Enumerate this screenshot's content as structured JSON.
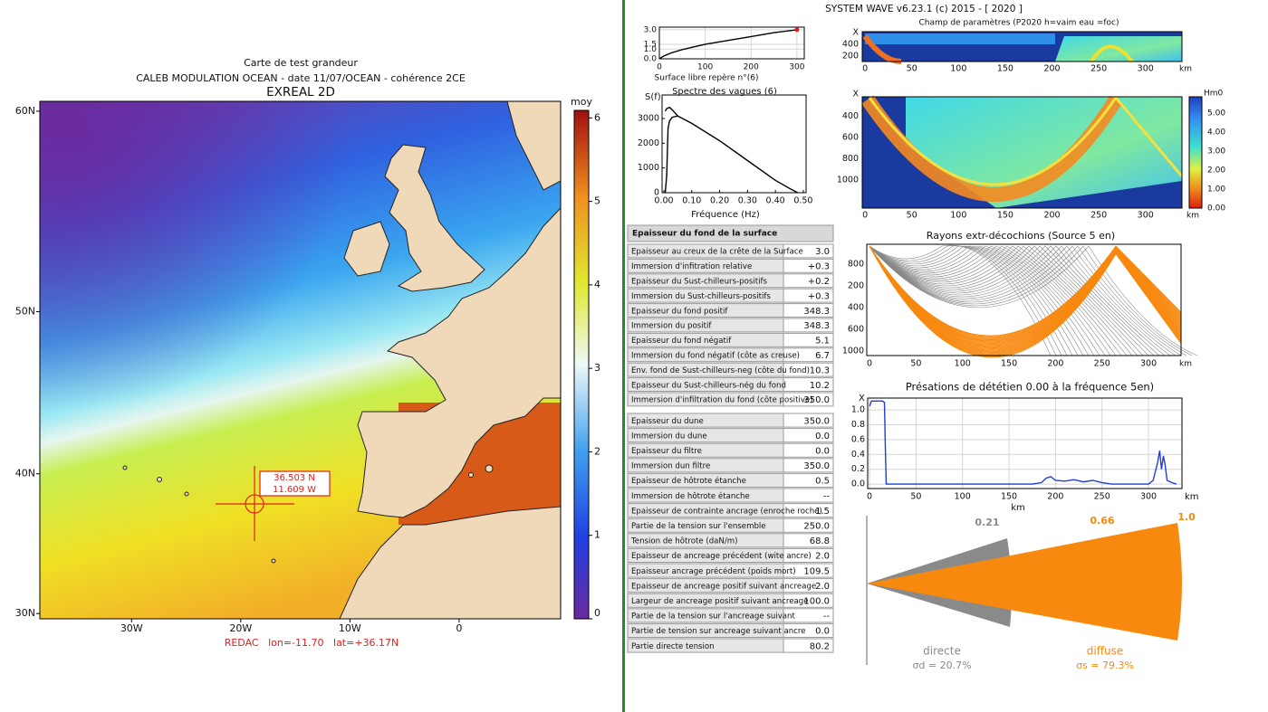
{
  "header": {
    "title": "SYSTEM WAVE v6.23.1 (c) 2015 - [ 2020 ]"
  },
  "map": {
    "title_lines": [
      "Carte de test grandeur",
      "CALEB MODULATION OCEAN - date 11/07/OCEAN - cohérence 2CE",
      "EXREAL 2D"
    ],
    "colorbar_label": "moy",
    "colorbar_ticks": [
      0,
      1,
      2,
      3,
      4,
      5,
      6
    ],
    "colorbar_lim": [
      0,
      6.09
    ],
    "lat_lim": [
      29.6,
      60.43
    ],
    "lat_ticks": [
      {
        "value": 60,
        "label": "60N"
      },
      {
        "value": 50,
        "label": "50N"
      },
      {
        "value": 40,
        "label": "40N"
      },
      {
        "value": 30,
        "label": "30N"
      }
    ],
    "lon_lim": [
      -38.4,
      9.3
    ],
    "lon_ticks": [
      {
        "value": -30,
        "label": "30W"
      },
      {
        "value": -20,
        "label": "20W"
      },
      {
        "value": -10,
        "label": "10W"
      },
      0
    ],
    "marker": {
      "lat_label": "36.503 N",
      "lon_label": "11.609 W"
    },
    "status": "REDAC   lon=-11.70   lat=+36.17N"
  },
  "surface_plot": {
    "type": "line",
    "xlabel": "Surface libre repère n°(6)",
    "xlim": [
      0,
      316
    ],
    "ylim": [
      0,
      3.27
    ],
    "xticks": [
      0,
      100,
      200,
      300
    ],
    "yticks": [
      {
        "value": 3,
        "label": "3.0"
      },
      {
        "value": 1.5,
        "label": "1.5"
      },
      {
        "value": 1,
        "label": "1.0"
      },
      {
        "value": 0,
        "label": "0.0"
      }
    ],
    "x": [
      0,
      10,
      25,
      50,
      100,
      150,
      200,
      250,
      300
    ],
    "values": [
      0,
      0.3,
      0.6,
      0.95,
      1.5,
      1.9,
      2.3,
      2.7,
      3.0
    ],
    "color": "#000000"
  },
  "spectrum_plot": {
    "type": "line",
    "title": "Spectre des vagues (6)",
    "ylabel": "S(f)",
    "xlabel": "Fréquence (Hz)",
    "xlim": [
      -0.0065,
      0.51
    ],
    "ylim": [
      0,
      3950
    ],
    "xticks": [
      {
        "value": 0,
        "label": "0.00"
      },
      {
        "value": 0.1,
        "label": "0.10"
      },
      {
        "value": 0.2,
        "label": "0.20"
      },
      {
        "value": 0.3,
        "label": "0.30"
      },
      {
        "value": 0.4,
        "label": "0.40"
      },
      {
        "value": 0.5,
        "label": "0.50"
      }
    ],
    "yticks": [
      0,
      1000,
      2000,
      3000
    ],
    "series": [
      {
        "color": "#000000",
        "x": [
          0.005,
          0.01,
          0.015,
          0.02,
          0.03,
          0.05,
          0.1,
          0.2,
          0.3,
          0.4,
          0.45,
          0.48
        ],
        "values": [
          0,
          700,
          2600,
          2900,
          3050,
          3100,
          2800,
          2100,
          1300,
          500,
          180,
          0
        ]
      },
      {
        "color": "#000000",
        "x": [
          0.005,
          0.01,
          0.02,
          0.03,
          0.05
        ],
        "values": [
          3300,
          3400,
          3450,
          3350,
          3100
        ]
      }
    ]
  },
  "parameter_field": {
    "title": "Champ de paramètres (P2020 h=vaim eau =foc)",
    "panel1_ylabels": [
      "X",
      "400",
      "200"
    ],
    "panel2_ylabels": [
      "X",
      "400",
      "600",
      "800",
      "1000"
    ],
    "xlim": [
      -3,
      339
    ],
    "xticks": [
      0,
      50,
      100,
      150,
      200,
      250,
      300
    ],
    "xunit": "km",
    "colorbar_labels": [
      "Hm0",
      "5.00",
      "4.00",
      "3.00",
      "2.00",
      "1.00",
      "0.00"
    ]
  },
  "rays": {
    "title": "Rayons extr-décochions (Source  5 en)",
    "ylabels": [
      "800",
      "200",
      "400",
      "600",
      "1000"
    ],
    "xlim": [
      -3,
      335
    ],
    "xticks": [
      0,
      50,
      100,
      150,
      200,
      250,
      300
    ],
    "xunit": "km"
  },
  "presations_plot": {
    "type": "line",
    "title": "Présations de dététien 0.00 à la fréquence 5en)",
    "ylabel": "X",
    "xunit": "km",
    "xlabel": "km",
    "xlim": [
      -2,
      336
    ],
    "ylim": [
      -0.06,
      1.16
    ],
    "xticks": [
      0,
      50,
      100,
      150,
      200,
      250,
      300
    ],
    "yticks": [
      {
        "value": 0,
        "label": "0.0"
      },
      {
        "value": 0.2,
        "label": "0.2"
      },
      {
        "value": 0.4,
        "label": "0.4"
      },
      {
        "value": 0.6,
        "label": "0.6"
      },
      {
        "value": 0.8,
        "label": "0.8"
      },
      {
        "value": 1,
        "label": "1.0"
      }
    ],
    "x": [
      0,
      2,
      14,
      16,
      17,
      18,
      175,
      185,
      190,
      195,
      200,
      210,
      220,
      230,
      240,
      250,
      260,
      300,
      305,
      310,
      312,
      314,
      316,
      318,
      320,
      325,
      330
    ],
    "values": [
      1.05,
      1.12,
      1.12,
      1.1,
      0.5,
      0,
      0,
      0.02,
      0.08,
      0.1,
      0.05,
      0.04,
      0.06,
      0.03,
      0.05,
      0.02,
      0,
      0,
      0.05,
      0.3,
      0.45,
      0.2,
      0.38,
      0.25,
      0.05,
      0.02,
      0
    ],
    "color": "#1f3fd8"
  },
  "table": {
    "section1_title": "Epaisseur du fond de la surface",
    "section1_rows": [
      [
        "Epaisseur au creux de la crête de la Surface",
        "3.0"
      ],
      [
        "Immersion d'infitration relative",
        "+0.3"
      ],
      [
        "Epaisseur du Sust-chilleurs-positifs",
        "+0.2"
      ],
      [
        "Immersion du Sust-chilleurs-positifs",
        "+0.3"
      ],
      [
        "Epaisseur du fond positif",
        "348.3"
      ],
      [
        "Immersion du positif",
        "348.3"
      ],
      [
        "Epaisseur du fond négatif",
        "5.1"
      ],
      [
        "Immersion du fond négatif (côte as creuse)",
        "6.7"
      ],
      [
        "Env. fond de Sust-chilleurs-neg (côte du fond)",
        "10.3"
      ],
      [
        "Epaisseur du Sust-chilleurs-nég du fond",
        "10.2"
      ],
      [
        "Immersion d'infiltration du fond (côte positive)",
        "350.0"
      ]
    ],
    "section2_rows": [
      [
        "Epaisseur du dune",
        "350.0"
      ],
      [
        "Immersion du dune",
        "0.0"
      ],
      [
        "Epaisseur du filtre",
        "0.0"
      ],
      [
        "Immersion dun filtre",
        "350.0"
      ],
      [
        "Epaisseur de hôtrote étanche",
        "0.5"
      ],
      [
        "Immersion de hôtrote étanche",
        "--"
      ],
      [
        "Epaisseur de contrainte ancrage (enroche roche)",
        "1.5"
      ],
      [
        "Partie de la tension sur l'ensemble",
        "250.0"
      ],
      [
        "Tension de hôtrote (daN/m)",
        "68.8"
      ],
      [
        "Epaisseur de ancreage précédent (wite ancre)",
        "2.0"
      ],
      [
        "Epaisseur ancrage précédent (poids mort)",
        "109.5"
      ],
      [
        "Epaisseur de ancreage positif suivant ancreage",
        "2.0"
      ],
      [
        "Largeur de ancreage positif suivant ancreage",
        "100.0"
      ],
      [
        "Partie de la tension sur l'ancreage suivant",
        "--"
      ],
      [
        "Partie de tension sur ancreage suivant ancre",
        "0.0"
      ],
      [
        "Partie directe tension",
        "80.2"
      ]
    ]
  },
  "fan": {
    "labels": [
      "0.21",
      "0.66",
      "1.0"
    ],
    "direct_label": "directe",
    "direct_value": "σd = 20.7%",
    "diffuse_label": "diffuse",
    "diffuse_value": "σs = 79.3%"
  }
}
